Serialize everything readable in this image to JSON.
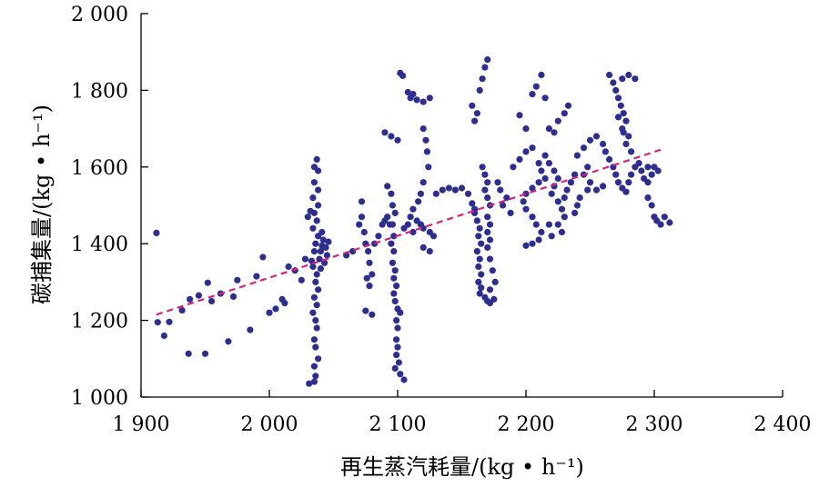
{
  "chart_data": {
    "type": "scatter",
    "title": "",
    "xlabel": "再生蒸汽耗量/(kg • h⁻¹)",
    "ylabel": "碳捕集量/(kg • h⁻¹)",
    "xlim": [
      1900,
      2400
    ],
    "ylim": [
      1000,
      2000
    ],
    "x_ticks": [
      1900,
      2000,
      2100,
      2200,
      2300,
      2400
    ],
    "x_tick_labels": [
      "1 900",
      "2 000",
      "2 100",
      "2 200",
      "2 300",
      "2 400"
    ],
    "y_ticks": [
      1000,
      1200,
      1400,
      1600,
      1800,
      2000
    ],
    "y_tick_labels": [
      "1 000",
      "1 200",
      "1 400",
      "1 600",
      "1 800",
      "2 000"
    ],
    "grid": false,
    "colors": {
      "points": "#2e2e8f",
      "trendline": "#d4237a",
      "axis": "#000000"
    },
    "trendline": {
      "style": "dashed",
      "x": [
        1912,
        2305
      ],
      "y": [
        1215,
        1645
      ]
    },
    "series": [
      {
        "values": [
          [
            1912,
            1428
          ],
          [
            1913,
            1195
          ],
          [
            1918,
            1160
          ],
          [
            1922,
            1196
          ],
          [
            1932,
            1226
          ],
          [
            1937,
            1113
          ],
          [
            1938,
            1255
          ],
          [
            1945,
            1265
          ],
          [
            1950,
            1113
          ],
          [
            1952,
            1298
          ],
          [
            1955,
            1250
          ],
          [
            1962,
            1270
          ],
          [
            1968,
            1145
          ],
          [
            1972,
            1262
          ],
          [
            1975,
            1305
          ],
          [
            1985,
            1175
          ],
          [
            1990,
            1315
          ],
          [
            1995,
            1365
          ],
          [
            2000,
            1220
          ],
          [
            2005,
            1230
          ],
          [
            2010,
            1255
          ],
          [
            2012,
            1245
          ],
          [
            2015,
            1340
          ],
          [
            2020,
            1330
          ],
          [
            2025,
            1305
          ],
          [
            2028,
            1360
          ],
          [
            2030,
            1470
          ],
          [
            2032,
            1485
          ],
          [
            2033,
            1355
          ],
          [
            2040,
            1335
          ],
          [
            2035,
            1600
          ],
          [
            2037,
            1620
          ],
          [
            2038,
            1590
          ],
          [
            2035,
            1560
          ],
          [
            2038,
            1540
          ],
          [
            2034,
            1520
          ],
          [
            2038,
            1500
          ],
          [
            2035,
            1480
          ],
          [
            2037,
            1460
          ],
          [
            2034,
            1440
          ],
          [
            2038,
            1420
          ],
          [
            2036,
            1400
          ],
          [
            2035,
            1380
          ],
          [
            2039,
            1360
          ],
          [
            2034,
            1340
          ],
          [
            2037,
            1320
          ],
          [
            2036,
            1300
          ],
          [
            2038,
            1280
          ],
          [
            2035,
            1260
          ],
          [
            2037,
            1240
          ],
          [
            2034,
            1220
          ],
          [
            2036,
            1200
          ],
          [
            2037,
            1180
          ],
          [
            2035,
            1150
          ],
          [
            2036,
            1130
          ],
          [
            2038,
            1100
          ],
          [
            2035,
            1080
          ],
          [
            2036,
            1055
          ],
          [
            2035,
            1040
          ],
          [
            2031,
            1035
          ],
          [
            2041,
            1430
          ],
          [
            2042,
            1410
          ],
          [
            2044,
            1390
          ],
          [
            2040,
            1380
          ],
          [
            2045,
            1370
          ],
          [
            2043,
            1350
          ],
          [
            2041,
            1395
          ],
          [
            2046,
            1405
          ],
          [
            2060,
            1370
          ],
          [
            2065,
            1380
          ],
          [
            2070,
            1450
          ],
          [
            2072,
            1470
          ],
          [
            2074,
            1430
          ],
          [
            2075,
            1400
          ],
          [
            2077,
            1380
          ],
          [
            2078,
            1350
          ],
          [
            2080,
            1320
          ],
          [
            2072,
            1510
          ],
          [
            2076,
            1310
          ],
          [
            2078,
            1290
          ],
          [
            2075,
            1225
          ],
          [
            2080,
            1215
          ],
          [
            2082,
            1400
          ],
          [
            2085,
            1420
          ],
          [
            2088,
            1450
          ],
          [
            2090,
            1460
          ],
          [
            2092,
            1470
          ],
          [
            2094,
            1450
          ],
          [
            2090,
            1690
          ],
          [
            2092,
            1550
          ],
          [
            2095,
            1530
          ],
          [
            2096,
            1500
          ],
          [
            2098,
            1480
          ],
          [
            2096,
            1450
          ],
          [
            2097,
            1420
          ],
          [
            2095,
            1400
          ],
          [
            2097,
            1380
          ],
          [
            2096,
            1350
          ],
          [
            2098,
            1330
          ],
          [
            2097,
            1310
          ],
          [
            2099,
            1290
          ],
          [
            2097,
            1270
          ],
          [
            2098,
            1250
          ],
          [
            2100,
            1230
          ],
          [
            2102,
            1220
          ],
          [
            2099,
            1200
          ],
          [
            2100,
            1180
          ],
          [
            2099,
            1150
          ],
          [
            2100,
            1130
          ],
          [
            2099,
            1110
          ],
          [
            2101,
            1090
          ],
          [
            2098,
            1075
          ],
          [
            2102,
            1060
          ],
          [
            2105,
            1045
          ],
          [
            2095,
            1680
          ],
          [
            2100,
            1670
          ],
          [
            2102,
            1845
          ],
          [
            2104,
            1838
          ],
          [
            2108,
            1795
          ],
          [
            2110,
            1780
          ],
          [
            2112,
            1790
          ],
          [
            2115,
            1775
          ],
          [
            2120,
            1770
          ],
          [
            2125,
            1780
          ],
          [
            2120,
            1700
          ],
          [
            2122,
            1670
          ],
          [
            2123,
            1640
          ],
          [
            2124,
            1600
          ],
          [
            2120,
            1560
          ],
          [
            2118,
            1530
          ],
          [
            2116,
            1510
          ],
          [
            2112,
            1490
          ],
          [
            2110,
            1470
          ],
          [
            2108,
            1450
          ],
          [
            2105,
            1440
          ],
          [
            2112,
            1430
          ],
          [
            2115,
            1460
          ],
          [
            2118,
            1450
          ],
          [
            2120,
            1440
          ],
          [
            2125,
            1430
          ],
          [
            2128,
            1420
          ],
          [
            2120,
            1390
          ],
          [
            2125,
            1380
          ],
          [
            2130,
            1530
          ],
          [
            2135,
            1540
          ],
          [
            2140,
            1545
          ],
          [
            2145,
            1540
          ],
          [
            2150,
            1545
          ],
          [
            2155,
            1530
          ],
          [
            2158,
            1505
          ],
          [
            2160,
            1490
          ],
          [
            2158,
            1760
          ],
          [
            2160,
            1720
          ],
          [
            2162,
            1740
          ],
          [
            2164,
            1800
          ],
          [
            2166,
            1830
          ],
          [
            2168,
            1860
          ],
          [
            2170,
            1880
          ],
          [
            2160,
            1480
          ],
          [
            2162,
            1460
          ],
          [
            2164,
            1440
          ],
          [
            2163,
            1420
          ],
          [
            2165,
            1400
          ],
          [
            2162,
            1380
          ],
          [
            2164,
            1360
          ],
          [
            2163,
            1340
          ],
          [
            2165,
            1320
          ],
          [
            2163,
            1300
          ],
          [
            2165,
            1285
          ],
          [
            2164,
            1270
          ],
          [
            2168,
            1260
          ],
          [
            2170,
            1250
          ],
          [
            2172,
            1245
          ],
          [
            2175,
            1255
          ],
          [
            2166,
            1600
          ],
          [
            2168,
            1580
          ],
          [
            2170,
            1560
          ],
          [
            2168,
            1540
          ],
          [
            2170,
            1520
          ],
          [
            2172,
            1500
          ],
          [
            2170,
            1470
          ],
          [
            2172,
            1450
          ],
          [
            2170,
            1430
          ],
          [
            2172,
            1410
          ],
          [
            2170,
            1390
          ],
          [
            2172,
            1360
          ],
          [
            2174,
            1330
          ],
          [
            2176,
            1300
          ],
          [
            2172,
            1280
          ],
          [
            2178,
            1560
          ],
          [
            2180,
            1540
          ],
          [
            2185,
            1520
          ],
          [
            2182,
            1500
          ],
          [
            2188,
            1480
          ],
          [
            2190,
            1600
          ],
          [
            2195,
            1620
          ],
          [
            2200,
            1640
          ],
          [
            2205,
            1650
          ],
          [
            2210,
            1610
          ],
          [
            2212,
            1590
          ],
          [
            2215,
            1570
          ],
          [
            2210,
            1560
          ],
          [
            2205,
            1545
          ],
          [
            2200,
            1530
          ],
          [
            2198,
            1510
          ],
          [
            2200,
            1490
          ],
          [
            2205,
            1470
          ],
          [
            2208,
            1450
          ],
          [
            2212,
            1430
          ],
          [
            2210,
            1410
          ],
          [
            2205,
            1400
          ],
          [
            2200,
            1395
          ],
          [
            2215,
            1630
          ],
          [
            2218,
            1610
          ],
          [
            2222,
            1590
          ],
          [
            2225,
            1570
          ],
          [
            2222,
            1550
          ],
          [
            2220,
            1530
          ],
          [
            2225,
            1510
          ],
          [
            2228,
            1490
          ],
          [
            2230,
            1470
          ],
          [
            2225,
            1450
          ],
          [
            2228,
            1430
          ],
          [
            2220,
            1420
          ],
          [
            2218,
            1450
          ],
          [
            2230,
            1520
          ],
          [
            2232,
            1540
          ],
          [
            2235,
            1560
          ],
          [
            2238,
            1580
          ],
          [
            2195,
            1735
          ],
          [
            2200,
            1700
          ],
          [
            2205,
            1790
          ],
          [
            2208,
            1810
          ],
          [
            2212,
            1840
          ],
          [
            2215,
            1780
          ],
          [
            2218,
            1700
          ],
          [
            2222,
            1690
          ],
          [
            2225,
            1720
          ],
          [
            2230,
            1740
          ],
          [
            2233,
            1760
          ],
          [
            2240,
            1630
          ],
          [
            2245,
            1650
          ],
          [
            2250,
            1670
          ],
          [
            2255,
            1680
          ],
          [
            2260,
            1660
          ],
          [
            2262,
            1640
          ],
          [
            2265,
            1620
          ],
          [
            2268,
            1600
          ],
          [
            2270,
            1580
          ],
          [
            2272,
            1560
          ],
          [
            2275,
            1545
          ],
          [
            2278,
            1535
          ],
          [
            2280,
            1560
          ],
          [
            2282,
            1580
          ],
          [
            2285,
            1600
          ],
          [
            2288,
            1610
          ],
          [
            2290,
            1590
          ],
          [
            2292,
            1570
          ],
          [
            2295,
            1560
          ],
          [
            2250,
            1560
          ],
          [
            2255,
            1540
          ],
          [
            2260,
            1550
          ],
          [
            2245,
            1580
          ],
          [
            2248,
            1600
          ],
          [
            2240,
            1500
          ],
          [
            2238,
            1480
          ],
          [
            2242,
            1520
          ],
          [
            2248,
            1540
          ],
          [
            2265,
            1840
          ],
          [
            2268,
            1820
          ],
          [
            2270,
            1800
          ],
          [
            2272,
            1780
          ],
          [
            2274,
            1760
          ],
          [
            2276,
            1740
          ],
          [
            2278,
            1720
          ],
          [
            2275,
            1700
          ],
          [
            2280,
            1680
          ],
          [
            2278,
            1660
          ],
          [
            2282,
            1640
          ],
          [
            2275,
            1830
          ],
          [
            2280,
            1840
          ],
          [
            2285,
            1830
          ],
          [
            2272,
            1730
          ],
          [
            2276,
            1690
          ],
          [
            2295,
            1520
          ],
          [
            2298,
            1500
          ],
          [
            2300,
            1470
          ],
          [
            2302,
            1460
          ],
          [
            2305,
            1450
          ],
          [
            2308,
            1470
          ],
          [
            2312,
            1455
          ],
          [
            2300,
            1600
          ],
          [
            2303,
            1590
          ],
          [
            2298,
            1580
          ],
          [
            2295,
            1600
          ]
        ]
      }
    ]
  }
}
